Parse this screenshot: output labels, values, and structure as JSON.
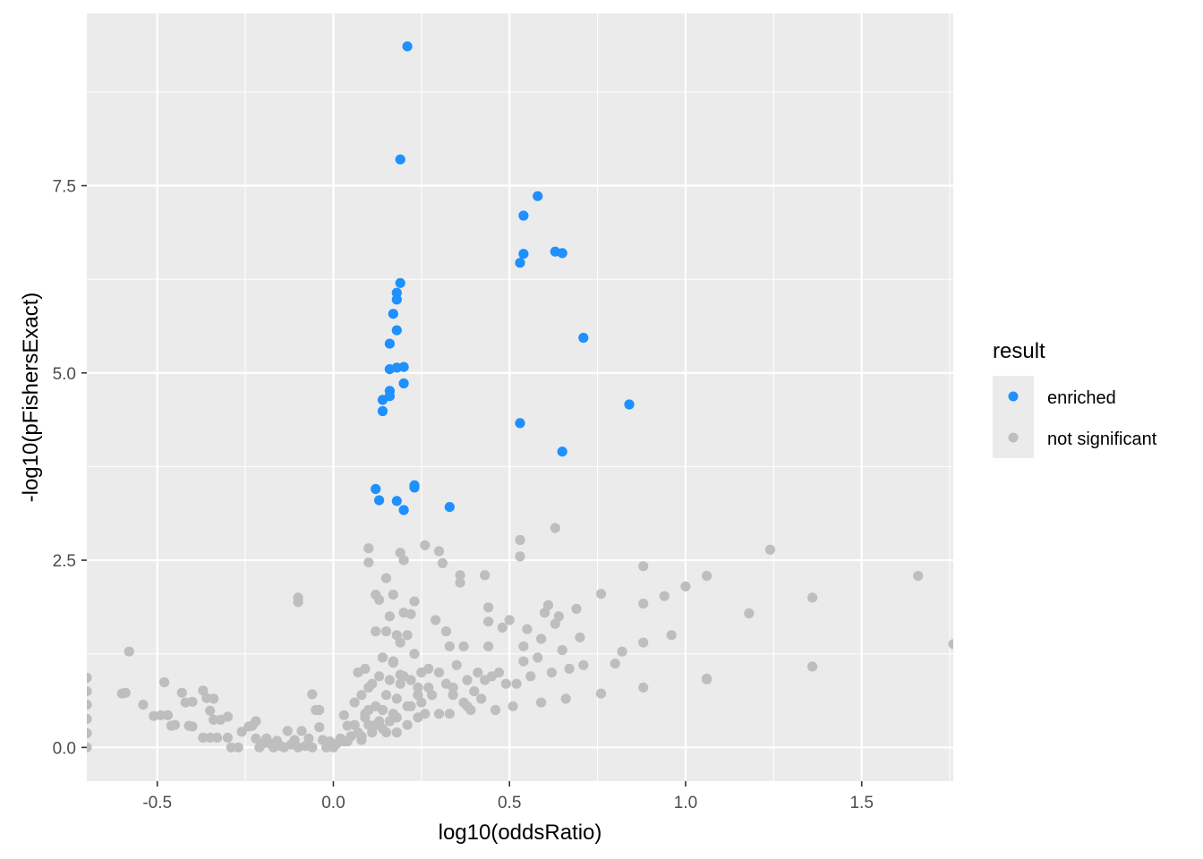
{
  "chart_data": {
    "type": "scatter",
    "xlabel": "log10(oddsRatio)",
    "ylabel": "-log10(pFishersExact)",
    "xlim": [
      -0.7,
      1.76
    ],
    "ylim": [
      -0.45,
      9.8
    ],
    "x_ticks": [
      -0.5,
      0.0,
      0.5,
      1.0,
      1.5
    ],
    "x_tick_labels": [
      "-0.5",
      "0.0",
      "0.5",
      "1.0",
      "1.5"
    ],
    "y_ticks": [
      0.0,
      2.5,
      5.0,
      7.5
    ],
    "y_tick_labels": [
      "0.0",
      "2.5",
      "5.0",
      "7.5"
    ],
    "grid": true,
    "panel_background": "#ebebeb",
    "legend": {
      "title": "result",
      "placement": "right",
      "entries": [
        {
          "label": "enriched",
          "color": "#1e90ff"
        },
        {
          "label": "not significant",
          "color": "#bebebe"
        }
      ]
    },
    "series": [
      {
        "name": "not significant",
        "color": "#bebebe",
        "points": [
          [
            -0.7,
            0.93
          ],
          [
            -0.7,
            0.75
          ],
          [
            -0.7,
            0.57
          ],
          [
            -0.7,
            0.38
          ],
          [
            -0.7,
            0.19
          ],
          [
            -0.7,
            0.0
          ],
          [
            -0.58,
            1.28
          ],
          [
            -0.59,
            0.73
          ],
          [
            -0.6,
            0.72
          ],
          [
            -0.54,
            0.57
          ],
          [
            -0.51,
            0.42
          ],
          [
            -0.49,
            0.43
          ],
          [
            -0.47,
            0.43
          ],
          [
            -0.48,
            0.87
          ],
          [
            -0.46,
            0.29
          ],
          [
            -0.45,
            0.3
          ],
          [
            -0.43,
            0.73
          ],
          [
            -0.42,
            0.6
          ],
          [
            -0.4,
            0.61
          ],
          [
            -0.41,
            0.29
          ],
          [
            -0.4,
            0.28
          ],
          [
            -0.37,
            0.76
          ],
          [
            -0.36,
            0.66
          ],
          [
            -0.35,
            0.49
          ],
          [
            -0.34,
            0.65
          ],
          [
            -0.37,
            0.13
          ],
          [
            -0.35,
            0.13
          ],
          [
            -0.33,
            0.13
          ],
          [
            -0.34,
            0.37
          ],
          [
            -0.32,
            0.37
          ],
          [
            -0.3,
            0.41
          ],
          [
            -0.3,
            0.13
          ],
          [
            -0.29,
            0.0
          ],
          [
            -0.27,
            0.0
          ],
          [
            -0.26,
            0.21
          ],
          [
            -0.24,
            0.28
          ],
          [
            -0.23,
            0.29
          ],
          [
            -0.22,
            0.35
          ],
          [
            -0.22,
            0.12
          ],
          [
            -0.21,
            0.0
          ],
          [
            -0.2,
            0.05
          ],
          [
            -0.19,
            0.12
          ],
          [
            -0.18,
            0.05
          ],
          [
            -0.17,
            0.0
          ],
          [
            -0.16,
            0.09
          ],
          [
            -0.15,
            0.02
          ],
          [
            -0.14,
            0.0
          ],
          [
            -0.13,
            0.22
          ],
          [
            -0.12,
            0.04
          ],
          [
            -0.11,
            0.1
          ],
          [
            -0.1,
            0.0
          ],
          [
            -0.09,
            0.22
          ],
          [
            -0.08,
            0.02
          ],
          [
            -0.07,
            0.12
          ],
          [
            -0.06,
            0.71
          ],
          [
            -0.06,
            0.0
          ],
          [
            -0.05,
            0.5
          ],
          [
            -0.04,
            0.5
          ],
          [
            -0.04,
            0.27
          ],
          [
            -0.03,
            0.1
          ],
          [
            -0.02,
            0.0
          ],
          [
            -0.01,
            0.08
          ],
          [
            0.0,
            0.0
          ],
          [
            0.01,
            0.05
          ],
          [
            0.02,
            0.12
          ],
          [
            0.03,
            0.08
          ],
          [
            0.03,
            0.43
          ],
          [
            0.04,
            0.29
          ],
          [
            -0.1,
            2.0
          ],
          [
            -0.1,
            1.94
          ],
          [
            0.06,
            0.6
          ],
          [
            0.07,
            1.0
          ],
          [
            0.08,
            0.7
          ],
          [
            0.08,
            0.15
          ],
          [
            0.09,
            0.45
          ],
          [
            0.09,
            1.05
          ],
          [
            0.1,
            0.8
          ],
          [
            0.1,
            0.3
          ],
          [
            0.11,
            0.85
          ],
          [
            0.11,
            0.2
          ],
          [
            0.12,
            1.55
          ],
          [
            0.12,
            0.55
          ],
          [
            0.13,
            0.95
          ],
          [
            0.13,
            0.35
          ],
          [
            0.14,
            1.2
          ],
          [
            0.14,
            0.5
          ],
          [
            0.15,
            1.55
          ],
          [
            0.15,
            0.7
          ],
          [
            0.15,
            0.2
          ],
          [
            0.16,
            1.75
          ],
          [
            0.16,
            0.9
          ],
          [
            0.17,
            1.15
          ],
          [
            0.17,
            0.45
          ],
          [
            0.18,
            1.5
          ],
          [
            0.18,
            0.65
          ],
          [
            0.18,
            0.2
          ],
          [
            0.19,
            2.6
          ],
          [
            0.19,
            1.4
          ],
          [
            0.19,
            0.85
          ],
          [
            0.2,
            2.5
          ],
          [
            0.2,
            1.8
          ],
          [
            0.2,
            0.95
          ],
          [
            0.21,
            1.5
          ],
          [
            0.21,
            0.55
          ],
          [
            0.22,
            1.78
          ],
          [
            0.22,
            0.9
          ],
          [
            0.23,
            1.25
          ],
          [
            0.24,
            0.8
          ],
          [
            0.24,
            0.4
          ],
          [
            0.25,
            1.0
          ],
          [
            0.25,
            0.6
          ],
          [
            0.26,
            2.7
          ],
          [
            0.26,
            0.45
          ],
          [
            0.27,
            1.05
          ],
          [
            0.28,
            0.7
          ],
          [
            0.29,
            1.7
          ],
          [
            0.3,
            2.62
          ],
          [
            0.3,
            1.0
          ],
          [
            0.3,
            0.45
          ],
          [
            0.31,
            2.46
          ],
          [
            0.32,
            1.55
          ],
          [
            0.32,
            0.85
          ],
          [
            0.33,
            1.35
          ],
          [
            0.34,
            0.7
          ],
          [
            0.35,
            1.1
          ],
          [
            0.36,
            2.3
          ],
          [
            0.36,
            2.2
          ],
          [
            0.37,
            1.35
          ],
          [
            0.37,
            0.6
          ],
          [
            0.38,
            0.9
          ],
          [
            0.39,
            0.5
          ],
          [
            0.4,
            0.75
          ],
          [
            0.41,
            1.0
          ],
          [
            0.42,
            0.65
          ],
          [
            0.43,
            2.3
          ],
          [
            0.44,
            1.87
          ],
          [
            0.44,
            1.68
          ],
          [
            0.44,
            1.35
          ],
          [
            0.45,
            0.95
          ],
          [
            0.46,
            0.5
          ],
          [
            0.47,
            1.0
          ],
          [
            0.48,
            1.6
          ],
          [
            0.49,
            0.85
          ],
          [
            0.5,
            1.7
          ],
          [
            0.51,
            0.55
          ],
          [
            0.52,
            0.85
          ],
          [
            0.53,
            2.77
          ],
          [
            0.53,
            2.55
          ],
          [
            0.54,
            1.35
          ],
          [
            0.54,
            1.15
          ],
          [
            0.55,
            1.58
          ],
          [
            0.56,
            0.95
          ],
          [
            0.58,
            1.2
          ],
          [
            0.59,
            0.6
          ],
          [
            0.59,
            1.45
          ],
          [
            0.6,
            1.8
          ],
          [
            0.61,
            1.9
          ],
          [
            0.62,
            1.0
          ],
          [
            0.63,
            1.65
          ],
          [
            0.63,
            2.93
          ],
          [
            0.64,
            1.75
          ],
          [
            0.65,
            1.3
          ],
          [
            0.66,
            0.65
          ],
          [
            0.67,
            1.05
          ],
          [
            0.69,
            1.85
          ],
          [
            0.7,
            1.47
          ],
          [
            0.71,
            1.1
          ],
          [
            0.76,
            0.72
          ],
          [
            0.76,
            2.05
          ],
          [
            0.8,
            1.12
          ],
          [
            0.82,
            1.28
          ],
          [
            0.88,
            2.42
          ],
          [
            0.88,
            1.92
          ],
          [
            0.88,
            1.4
          ],
          [
            0.88,
            0.8
          ],
          [
            0.94,
            2.02
          ],
          [
            0.96,
            1.5
          ],
          [
            1.0,
            2.15
          ],
          [
            1.06,
            2.29
          ],
          [
            1.06,
            0.92
          ],
          [
            1.06,
            0.91
          ],
          [
            1.18,
            1.79
          ],
          [
            1.24,
            2.64
          ],
          [
            1.36,
            2.0
          ],
          [
            1.36,
            1.08
          ],
          [
            1.66,
            2.29
          ],
          [
            1.76,
            1.38
          ],
          [
            0.1,
            2.66
          ],
          [
            0.1,
            2.47
          ],
          [
            0.12,
            2.04
          ],
          [
            0.13,
            1.97
          ],
          [
            0.15,
            2.26
          ],
          [
            0.17,
            2.04
          ],
          [
            0.17,
            1.13
          ],
          [
            0.19,
            0.97
          ],
          [
            0.22,
            0.55
          ],
          [
            0.23,
            1.95
          ],
          [
            0.24,
            0.7
          ],
          [
            0.27,
            0.8
          ],
          [
            0.33,
            0.45
          ],
          [
            0.34,
            0.8
          ],
          [
            0.38,
            0.55
          ],
          [
            0.43,
            0.9
          ],
          [
            0.06,
            0.3
          ],
          [
            0.07,
            0.2
          ],
          [
            0.08,
            0.1
          ],
          [
            0.09,
            0.4
          ],
          [
            0.1,
            0.5
          ],
          [
            0.12,
            0.3
          ],
          [
            0.14,
            0.25
          ],
          [
            0.16,
            0.35
          ],
          [
            0.18,
            0.4
          ],
          [
            0.21,
            0.3
          ],
          [
            0.05,
            0.15
          ],
          [
            0.04,
            0.08
          ]
        ]
      },
      {
        "name": "enriched",
        "color": "#1e90ff",
        "points": [
          [
            0.21,
            9.36
          ],
          [
            0.19,
            7.85
          ],
          [
            0.58,
            7.36
          ],
          [
            0.54,
            7.1
          ],
          [
            0.63,
            6.62
          ],
          [
            0.65,
            6.6
          ],
          [
            0.54,
            6.59
          ],
          [
            0.53,
            6.47
          ],
          [
            0.19,
            6.2
          ],
          [
            0.18,
            6.07
          ],
          [
            0.18,
            5.98
          ],
          [
            0.17,
            5.79
          ],
          [
            0.18,
            5.57
          ],
          [
            0.71,
            5.47
          ],
          [
            0.16,
            5.39
          ],
          [
            0.2,
            5.08
          ],
          [
            0.18,
            5.07
          ],
          [
            0.16,
            5.05
          ],
          [
            0.2,
            4.86
          ],
          [
            0.16,
            4.76
          ],
          [
            0.16,
            4.69
          ],
          [
            0.14,
            4.64
          ],
          [
            0.84,
            4.58
          ],
          [
            0.14,
            4.49
          ],
          [
            0.53,
            4.33
          ],
          [
            0.65,
            3.95
          ],
          [
            0.23,
            3.5
          ],
          [
            0.23,
            3.47
          ],
          [
            0.12,
            3.45
          ],
          [
            0.13,
            3.3
          ],
          [
            0.18,
            3.29
          ],
          [
            0.33,
            3.21
          ],
          [
            0.2,
            3.17
          ]
        ]
      }
    ]
  }
}
